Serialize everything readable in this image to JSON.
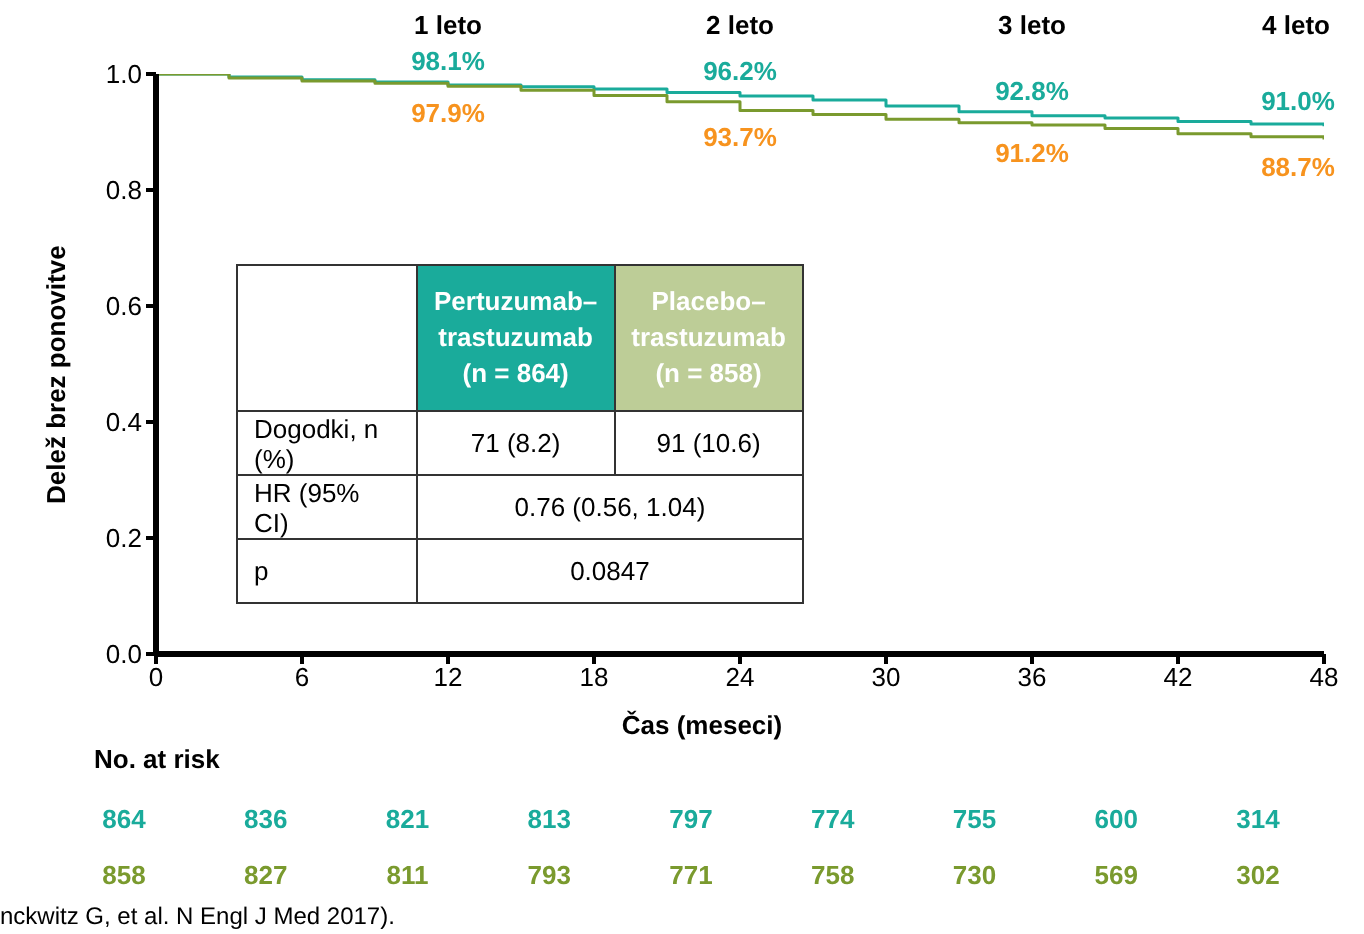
{
  "chart_data": {
    "type": "step",
    "ylabel": "Delež brez ponovitve",
    "xlabel": "Čas (meseci)",
    "xlim": [
      0,
      48
    ],
    "xticks": [
      0,
      6,
      12,
      18,
      24,
      30,
      36,
      42,
      48
    ],
    "ylim": [
      0,
      1
    ],
    "yticks": [
      {
        "value": 0,
        "label": "0.0"
      },
      0.2,
      0.4,
      0.6,
      0.8,
      {
        "value": 1,
        "label": "1.0"
      }
    ],
    "grid": false,
    "legend": false,
    "marker": "none",
    "line_style": "solid",
    "series": [
      {
        "color": "#1aab9b",
        "x": [
          0,
          3,
          6,
          9,
          12,
          15,
          18,
          21,
          24,
          27,
          30,
          33,
          36,
          39,
          42,
          45,
          48
        ],
        "values": [
          1.0,
          0.995,
          0.99,
          0.986,
          0.981,
          0.978,
          0.974,
          0.968,
          0.962,
          0.955,
          0.945,
          0.935,
          0.928,
          0.924,
          0.918,
          0.914,
          0.91
        ]
      },
      {
        "color": "#7a9a2e",
        "x": [
          0,
          3,
          6,
          9,
          12,
          15,
          18,
          21,
          24,
          27,
          30,
          33,
          36,
          39,
          42,
          45,
          48
        ],
        "values": [
          1.0,
          0.993,
          0.988,
          0.984,
          0.979,
          0.972,
          0.963,
          0.952,
          0.937,
          0.93,
          0.922,
          0.916,
          0.912,
          0.906,
          0.897,
          0.892,
          0.887
        ]
      }
    ],
    "annotations": [
      "1 leto",
      "2 leto",
      "3 leto",
      "4 leto",
      {
        "text": "98.1%",
        "x": 12,
        "y": 0.981
      },
      {
        "text": "96.2%",
        "x": 24,
        "y": 0.962
      },
      {
        "text": "92.8%",
        "x": 36,
        "y": 0.928
      },
      {
        "text": "91.0%",
        "x": 48,
        "y": 0.91
      },
      {
        "text": "97.9%",
        "x": 12,
        "y": 0.979
      },
      {
        "text": "93.7%",
        "x": 24,
        "y": 0.937
      },
      {
        "text": "91.2%",
        "x": 36,
        "y": 0.912
      },
      {
        "text": "88.7%",
        "x": 48,
        "y": 0.887
      },
      "No. at risk",
      "864",
      "836",
      "821",
      "813",
      "797",
      "774",
      "755",
      "600",
      "314",
      "858",
      "827",
      "811",
      "793",
      "771",
      "758",
      "730",
      "569",
      "302",
      "Pertuzumab–trastuzumab (n = 864)",
      "Placebo–trastuzumab (n = 858)",
      "Dogodki, n (%)",
      "71 (8.2)",
      "91 (10.6)",
      "HR (95% CI)",
      "0.76 (0.56, 1.04)",
      "p",
      "0.0847",
      "nckwitz G, et al. N Engl J Med 2017)."
    ]
  }
}
